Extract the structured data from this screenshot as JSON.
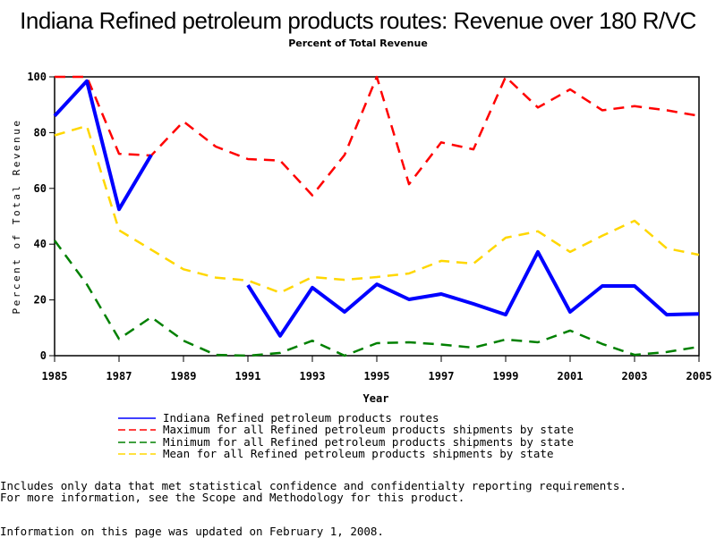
{
  "chart_data": {
    "type": "line",
    "title": "Indiana Refined petroleum products routes: Revenue over 180 R/VC",
    "subtitle": "Percent of Total Revenue",
    "xlabel": "Year",
    "ylabel": "Percent of Total Revenue",
    "xlim": [
      1985,
      2005
    ],
    "ylim": [
      0,
      100
    ],
    "x_ticks": [
      "1985",
      "1987",
      "1989",
      "1991",
      "1993",
      "1995",
      "1997",
      "1999",
      "2001",
      "2003",
      "2005"
    ],
    "y_ticks": [
      "0",
      "20",
      "40",
      "60",
      "80",
      "100"
    ],
    "grid": false,
    "legend_position": "bottom",
    "x": [
      1985,
      1986,
      1987,
      1988,
      1989,
      1990,
      1991,
      1992,
      1993,
      1994,
      1995,
      1996,
      1997,
      1998,
      1999,
      2000,
      2001,
      2002,
      2003,
      2004,
      2005
    ],
    "series": [
      {
        "name": "Indiana Refined petroleum products routes",
        "color": "#0000ff",
        "style": "solid",
        "segments": [
          {
            "x": [
              1985,
              1986,
              1987,
              1988
            ],
            "values": [
              86,
              98.5,
              52.5,
              72
            ]
          },
          {
            "x": [
              1991,
              1992,
              1993,
              1994,
              1995,
              1996,
              1997,
              1998,
              1999,
              2000,
              2001,
              2002,
              2003,
              2004,
              2005
            ],
            "values": [
              25.3,
              7.1,
              24.4,
              15.7,
              25.6,
              20.2,
              22.1,
              18.6,
              14.7,
              37.2,
              15.7,
              25,
              25,
              14.7,
              15
            ]
          }
        ]
      },
      {
        "name": "Maximum for all Refined petroleum products shipments by state",
        "color": "#ff0000",
        "style": "dashed",
        "segments": [
          {
            "x": [
              1985,
              1986,
              1987,
              1988,
              1989,
              1990,
              1991,
              1992,
              1993,
              1994,
              1995,
              1996,
              1997,
              1998,
              1999,
              2000,
              2001,
              2002,
              2003,
              2004,
              2005
            ],
            "values": [
              100,
              100,
              72.4,
              71.8,
              84,
              75,
              70.5,
              70,
              57.5,
              72,
              100,
              61.5,
              76.5,
              74,
              100,
              89,
              95.5,
              88,
              89.5,
              88,
              86
            ]
          }
        ]
      },
      {
        "name": "Minimum for all Refined petroleum products shipments by state",
        "color": "#008000",
        "style": "dashed",
        "segments": [
          {
            "x": [
              1985,
              1986,
              1987,
              1988,
              1989,
              1990,
              1991,
              1992,
              1993,
              1994,
              1995,
              1996,
              1997,
              1998,
              1999,
              2000,
              2001,
              2002,
              2003,
              2004,
              2005
            ],
            "values": [
              41.3,
              25.6,
              6,
              13.8,
              5.4,
              0.3,
              0,
              1,
              5.4,
              0,
              4.5,
              4.8,
              4,
              2.9,
              5.8,
              4.8,
              9,
              4.2,
              0.3,
              1.3,
              3.2
            ]
          }
        ]
      },
      {
        "name": "Mean for all Refined petroleum products shipments by state",
        "color": "#ffd700",
        "style": "dashed",
        "segments": [
          {
            "x": [
              1985,
              1986,
              1987,
              1988,
              1989,
              1990,
              1991,
              1992,
              1993,
              1994,
              1995,
              1996,
              1997,
              1998,
              1999,
              2000,
              2001,
              2002,
              2003,
              2004,
              2005
            ],
            "values": [
              79,
              82.4,
              45,
              38,
              31,
              28,
              27,
              22.6,
              28.2,
              27.2,
              28.2,
              29.5,
              34,
              33,
              42.3,
              44.6,
              37.2,
              43,
              48.4,
              38.5,
              36.2
            ]
          }
        ]
      }
    ]
  },
  "footnotes": {
    "line1": "Includes only data that met statistical confidence and confidentialty reporting requirements.",
    "line2": "For more information, see the Scope and Methodology for this product.",
    "updated": "Information on this page was updated on February 1, 2008."
  }
}
